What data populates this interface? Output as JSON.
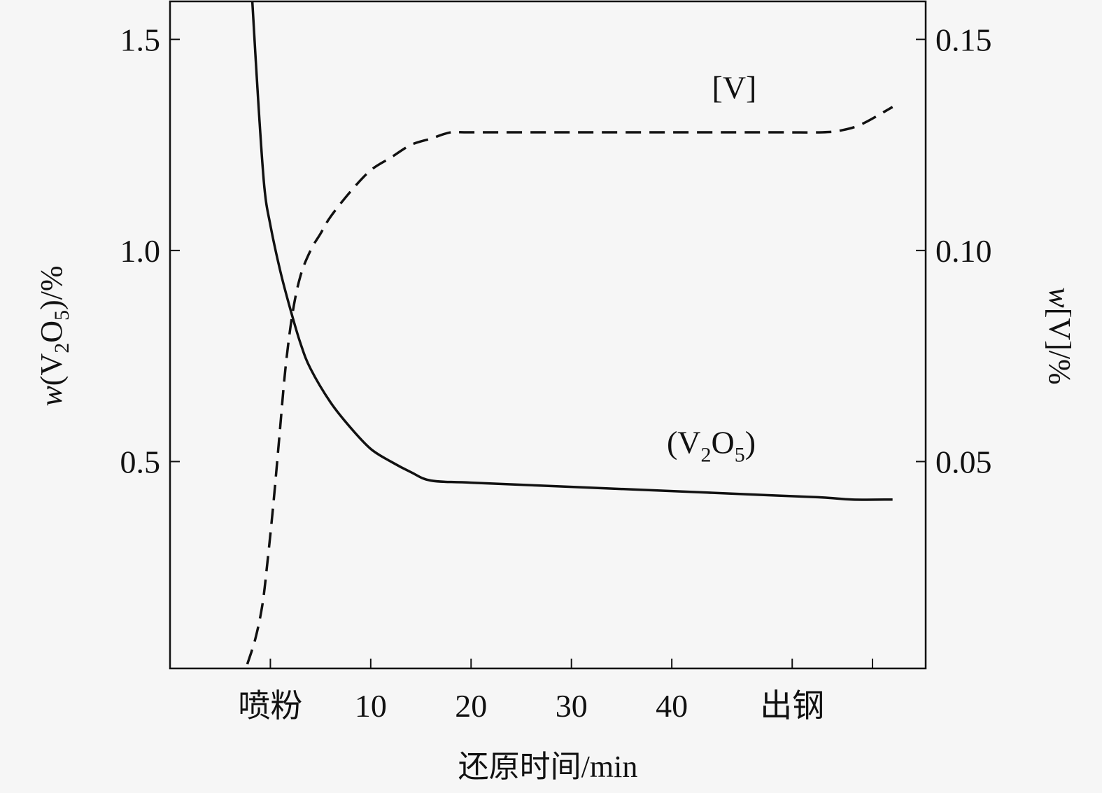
{
  "chart_data": {
    "type": "line",
    "xlabel": "还原时间/min",
    "ylabel_left": {
      "prefix": "w",
      "open": "(V",
      "sub1": "2",
      "mid": "O",
      "sub2": "5",
      "close": ")/%"
    },
    "ylabel_right": {
      "prefix": "w",
      "rest": "[V]/%"
    },
    "x_ticks": [
      {
        "value": 0,
        "label": "喷粉"
      },
      {
        "value": 10,
        "label": "10"
      },
      {
        "value": 20,
        "label": "20"
      },
      {
        "value": 30,
        "label": "30"
      },
      {
        "value": 40,
        "label": "40"
      },
      {
        "value": 52,
        "label": "出钢"
      }
    ],
    "x_minor_ticks": [
      60
    ],
    "xlim": [
      -10,
      65.3
    ],
    "ylim_left": [
      0.01,
      1.59
    ],
    "ylim_right": [
      0.001,
      0.159
    ],
    "yticks_left": [
      {
        "value": 0.5,
        "label": "0.5"
      },
      {
        "value": 1.0,
        "label": "1.0"
      },
      {
        "value": 1.5,
        "label": "1.5"
      }
    ],
    "yticks_right": [
      {
        "value": 0.05,
        "label": "0.05"
      },
      {
        "value": 0.1,
        "label": "0.10"
      },
      {
        "value": 0.15,
        "label": "0.15"
      }
    ],
    "series": [
      {
        "name_parts": {
          "open": "(V",
          "sub1": "2",
          "mid": "O",
          "sub2": "5",
          "close": ")"
        },
        "axis": "left",
        "style": "solid",
        "label_at": {
          "x": 39.5,
          "y": 0.52
        },
        "x": [
          -1.8,
          -1.2,
          -0.6,
          0,
          1,
          2,
          3,
          4,
          6,
          8,
          10,
          12,
          14,
          16,
          20,
          30,
          40,
          50,
          55,
          58,
          62
        ],
        "y": [
          1.59,
          1.35,
          1.15,
          1.06,
          0.95,
          0.86,
          0.78,
          0.72,
          0.64,
          0.58,
          0.53,
          0.5,
          0.475,
          0.455,
          0.45,
          0.44,
          0.43,
          0.42,
          0.415,
          0.41,
          0.41
        ]
      },
      {
        "name": "[V]",
        "axis": "right",
        "style": "dashed",
        "label_at": {
          "x": 44,
          "y": 0.136
        },
        "x": [
          -2.3,
          -1.5,
          -0.8,
          -0.3,
          0.3,
          0.9,
          1.5,
          2.2,
          3,
          4,
          5,
          6,
          8,
          10,
          12,
          14,
          16,
          18,
          20,
          30,
          40,
          50,
          55,
          57,
          59,
          62
        ],
        "y": [
          0.002,
          0.008,
          0.016,
          0.026,
          0.04,
          0.056,
          0.072,
          0.085,
          0.094,
          0.1,
          0.104,
          0.108,
          0.114,
          0.119,
          0.122,
          0.125,
          0.1265,
          0.128,
          0.128,
          0.128,
          0.128,
          0.128,
          0.128,
          0.1285,
          0.13,
          0.134
        ]
      }
    ],
    "grid": false,
    "legend": "none"
  }
}
